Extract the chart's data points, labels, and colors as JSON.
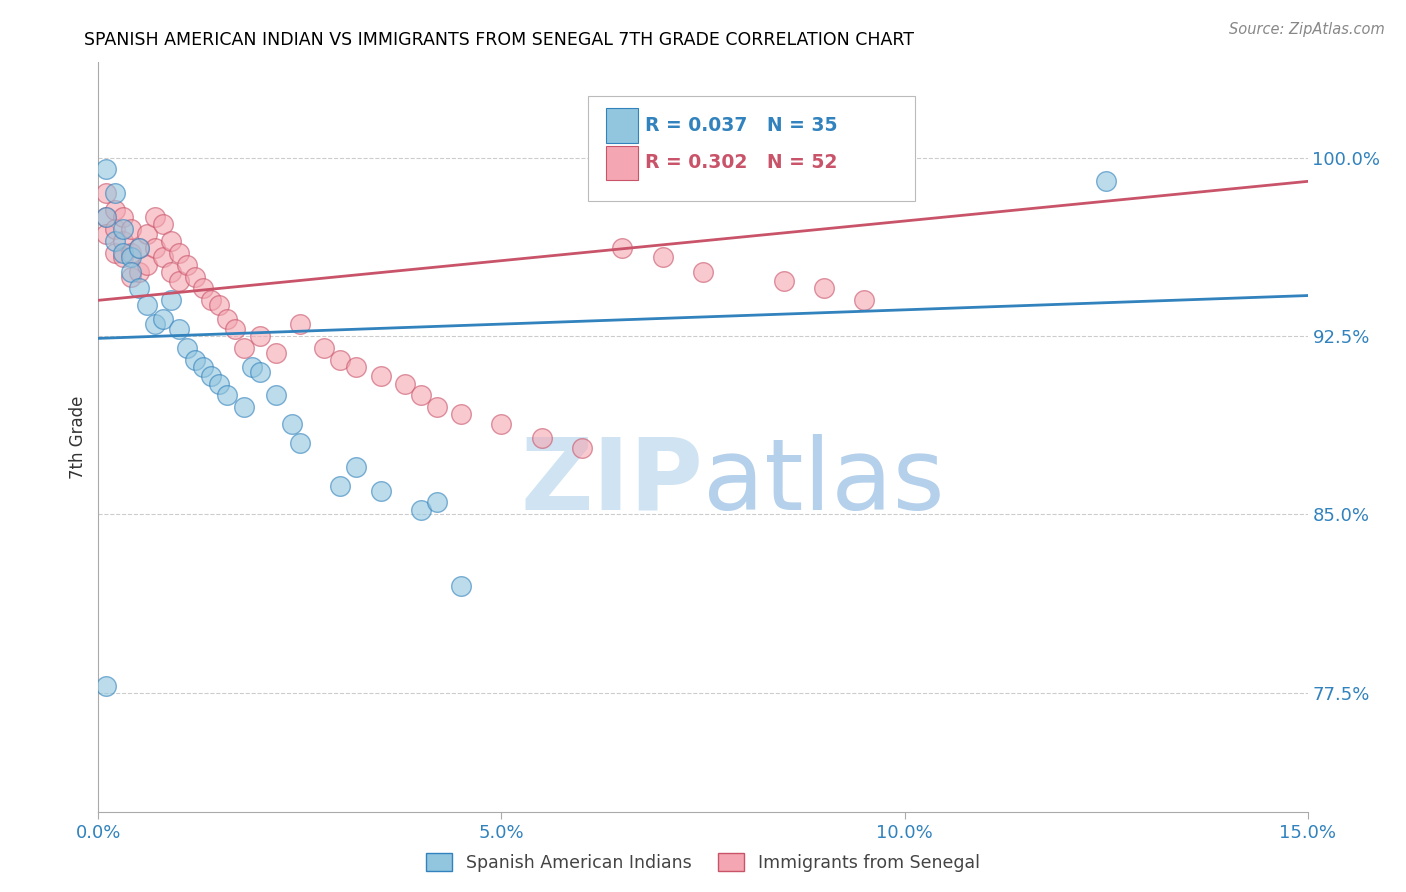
{
  "title": "SPANISH AMERICAN INDIAN VS IMMIGRANTS FROM SENEGAL 7TH GRADE CORRELATION CHART",
  "source": "Source: ZipAtlas.com",
  "ylabel": "7th Grade",
  "ylabel_ticks": [
    "77.5%",
    "85.0%",
    "92.5%",
    "100.0%"
  ],
  "ylabel_tick_vals": [
    0.775,
    0.85,
    0.925,
    1.0
  ],
  "xlim": [
    0.0,
    0.15
  ],
  "ylim": [
    0.725,
    1.04
  ],
  "legend_blue_r": "R = 0.037",
  "legend_blue_n": "N = 35",
  "legend_pink_r": "R = 0.302",
  "legend_pink_n": "N = 52",
  "legend_label_blue": "Spanish American Indians",
  "legend_label_pink": "Immigrants from Senegal",
  "color_blue": "#92c5de",
  "color_pink": "#f4a7b2",
  "color_blue_line": "#3182bd",
  "color_pink_line": "#c9546a",
  "watermark_zip": "ZIP",
  "watermark_atlas": "atlas",
  "blue_scatter_x": [
    0.001,
    0.001,
    0.002,
    0.002,
    0.003,
    0.003,
    0.004,
    0.004,
    0.005,
    0.005,
    0.006,
    0.007,
    0.008,
    0.009,
    0.01,
    0.011,
    0.012,
    0.013,
    0.014,
    0.015,
    0.016,
    0.018,
    0.019,
    0.02,
    0.022,
    0.024,
    0.025,
    0.03,
    0.032,
    0.035,
    0.04,
    0.042,
    0.045,
    0.125,
    0.001
  ],
  "blue_scatter_y": [
    0.995,
    0.975,
    0.985,
    0.965,
    0.96,
    0.97,
    0.958,
    0.952,
    0.962,
    0.945,
    0.938,
    0.93,
    0.932,
    0.94,
    0.928,
    0.92,
    0.915,
    0.912,
    0.908,
    0.905,
    0.9,
    0.895,
    0.912,
    0.91,
    0.9,
    0.888,
    0.88,
    0.862,
    0.87,
    0.86,
    0.852,
    0.855,
    0.82,
    0.99,
    0.778
  ],
  "pink_scatter_x": [
    0.001,
    0.001,
    0.001,
    0.002,
    0.002,
    0.002,
    0.003,
    0.003,
    0.003,
    0.004,
    0.004,
    0.004,
    0.005,
    0.005,
    0.006,
    0.006,
    0.007,
    0.007,
    0.008,
    0.008,
    0.009,
    0.009,
    0.01,
    0.01,
    0.011,
    0.012,
    0.013,
    0.014,
    0.015,
    0.016,
    0.017,
    0.018,
    0.02,
    0.022,
    0.025,
    0.028,
    0.03,
    0.032,
    0.035,
    0.038,
    0.04,
    0.042,
    0.045,
    0.05,
    0.055,
    0.06,
    0.065,
    0.07,
    0.075,
    0.085,
    0.09,
    0.095
  ],
  "pink_scatter_y": [
    0.985,
    0.975,
    0.968,
    0.978,
    0.97,
    0.96,
    0.975,
    0.965,
    0.958,
    0.97,
    0.96,
    0.95,
    0.962,
    0.952,
    0.968,
    0.955,
    0.975,
    0.962,
    0.972,
    0.958,
    0.965,
    0.952,
    0.96,
    0.948,
    0.955,
    0.95,
    0.945,
    0.94,
    0.938,
    0.932,
    0.928,
    0.92,
    0.925,
    0.918,
    0.93,
    0.92,
    0.915,
    0.912,
    0.908,
    0.905,
    0.9,
    0.895,
    0.892,
    0.888,
    0.882,
    0.878,
    0.962,
    0.958,
    0.952,
    0.948,
    0.945,
    0.94
  ],
  "blue_line_x": [
    0.0,
    0.15
  ],
  "blue_line_y": [
    0.924,
    0.942
  ],
  "pink_line_x": [
    0.0,
    0.15
  ],
  "pink_line_y": [
    0.94,
    0.99
  ]
}
